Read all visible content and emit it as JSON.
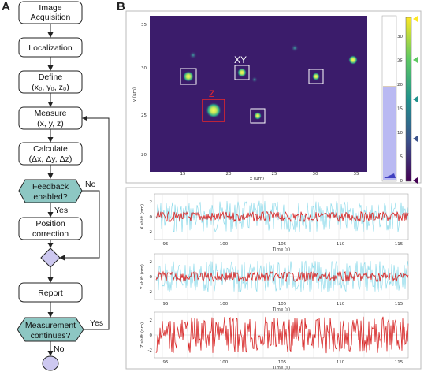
{
  "panels": {
    "a": "A",
    "b": "B"
  },
  "flowchart": {
    "image_acquisition": [
      "Image",
      "Acquisition"
    ],
    "localization": "Localization",
    "define": [
      "Define",
      "(x₀, y₀, z₀)"
    ],
    "measure": [
      "Measure",
      "(x, y, z)"
    ],
    "calculate": [
      "Calculate",
      "(Δx, Δy, Δz)"
    ],
    "feedback": [
      "Feedback",
      "enabled?"
    ],
    "position_correction": [
      "Position",
      "correction"
    ],
    "report": "Report",
    "measurement_continues": [
      "Measurement",
      "continues?"
    ],
    "yes": "Yes",
    "no": "No"
  },
  "image_panel": {
    "labels": {
      "xy": "XY",
      "z": "Z"
    },
    "x_axis_label": "x (µm)",
    "y_axis_label": "y (µm)",
    "x_ticks": [
      "15",
      "20",
      "25",
      "30",
      "35"
    ],
    "y_ticks": [
      "35",
      "30",
      "25",
      "20"
    ],
    "colorbar_ticks": [
      "30",
      "25",
      "20",
      "15",
      "10",
      "5",
      "0"
    ],
    "colors": {
      "background": "#3b1c6b",
      "z_box": "#e8262b",
      "xy_box": "#ffffff"
    }
  },
  "plots": [
    {
      "ylabel": "X shift (nm)",
      "xlabel": "Time (s)",
      "yticks": [
        "2",
        "0",
        "-2"
      ],
      "xticks": [
        "95",
        "100",
        "105",
        "110",
        "115"
      ],
      "trace_color": "#d62020",
      "raw_color": "#7fd6e8"
    },
    {
      "ylabel": "Y shift (nm)",
      "xlabel": "Time (s)",
      "yticks": [
        "2",
        "0",
        "-2"
      ],
      "xticks": [
        "95",
        "100",
        "105",
        "110",
        "115"
      ],
      "trace_color": "#d62020",
      "raw_color": "#7fd6e8"
    },
    {
      "ylabel": "Z shift (nm)",
      "xlabel": "Time (s)",
      "yticks": [
        "2",
        "0",
        "-2"
      ],
      "xticks": [
        "95",
        "100",
        "105",
        "110",
        "115"
      ],
      "trace_color": "#d62020",
      "raw_color": null
    }
  ]
}
